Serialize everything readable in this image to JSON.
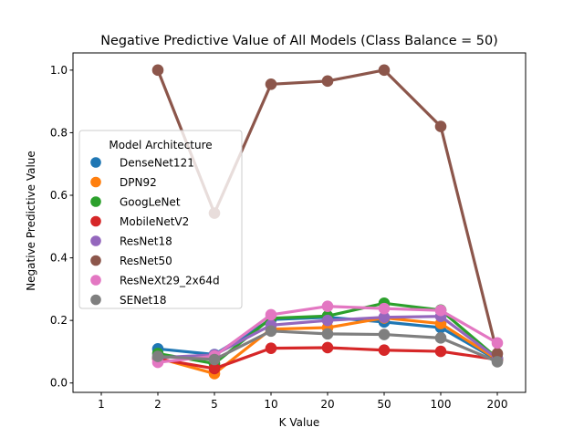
{
  "chart_data": {
    "type": "line",
    "title": "Negative Predictive Value of All Models (Class Balance = 50)",
    "xlabel": "K Value",
    "ylabel": "Negative Predictive Value",
    "categories": [
      "1",
      "2",
      "5",
      "10",
      "20",
      "50",
      "100",
      "200"
    ],
    "ylim": [
      -0.03,
      1.055
    ],
    "yticks": [
      "0.0",
      "0.2",
      "0.4",
      "0.6",
      "0.8",
      "1.0"
    ],
    "grid": false,
    "legend": {
      "title": "Model Architecture",
      "placement": "center-left"
    },
    "series": [
      {
        "name": "DenseNet121",
        "color": "#1f77b4",
        "values": [
          null,
          0.109,
          0.091,
          0.203,
          0.21,
          0.195,
          0.177,
          0.073
        ]
      },
      {
        "name": "DPN92",
        "color": "#ff7f0e",
        "values": [
          null,
          0.08,
          0.03,
          0.172,
          0.177,
          0.208,
          0.19,
          0.075
        ]
      },
      {
        "name": "GoogLeNet",
        "color": "#2ca02c",
        "values": [
          null,
          0.094,
          0.062,
          0.207,
          0.214,
          0.255,
          0.233,
          0.079
        ]
      },
      {
        "name": "MobileNetV2",
        "color": "#d62728",
        "values": [
          null,
          0.077,
          0.046,
          0.111,
          0.113,
          0.105,
          0.101,
          0.075
        ]
      },
      {
        "name": "ResNet18",
        "color": "#9467bd",
        "values": [
          null,
          0.081,
          0.09,
          0.185,
          0.2,
          0.21,
          0.213,
          0.078
        ]
      },
      {
        "name": "ResNet50",
        "color": "#8c564b",
        "values": [
          null,
          1.0,
          0.543,
          0.955,
          0.965,
          1.0,
          0.82,
          0.094
        ]
      },
      {
        "name": "ResNeXt29_2x64d",
        "color": "#e377c2",
        "values": [
          null,
          0.066,
          0.086,
          0.218,
          0.245,
          0.238,
          0.232,
          0.128
        ]
      },
      {
        "name": "SENet18",
        "color": "#7f7f7f",
        "values": [
          null,
          0.085,
          0.075,
          0.166,
          0.157,
          0.155,
          0.144,
          0.068
        ]
      }
    ]
  }
}
